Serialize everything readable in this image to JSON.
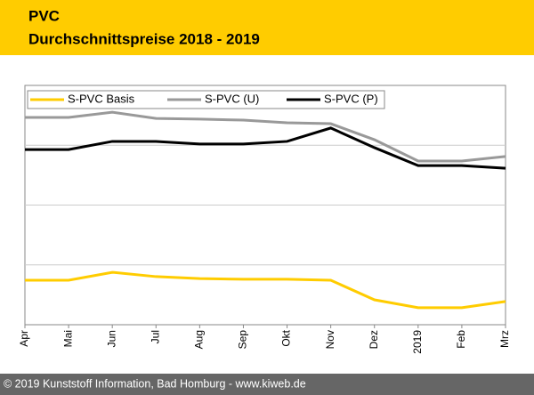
{
  "chart_data": {
    "type": "line",
    "title": "PVC",
    "subtitle": "Durchschnittspreise 2018 - 2019",
    "categories": [
      "Apr",
      "Mai",
      "Jun",
      "Jul",
      "Aug",
      "Sep",
      "Okt",
      "Nov",
      "Dez",
      "2019",
      "Feb",
      "Mrz"
    ],
    "series": [
      {
        "name": "S-PVC Basis",
        "color": "#ffcc00",
        "values": [
          18.6,
          18.6,
          21.9,
          20.1,
          19.3,
          19.0,
          19.0,
          18.6,
          10.4,
          7.1,
          7.1,
          9.7
        ]
      },
      {
        "name": "S-PVC (U)",
        "color": "#999999",
        "values": [
          86.6,
          86.6,
          88.8,
          86.2,
          85.9,
          85.5,
          84.4,
          84.0,
          77.3,
          68.4,
          68.4,
          70.3
        ]
      },
      {
        "name": "S-PVC (P)",
        "color": "#000000",
        "values": [
          73.2,
          73.2,
          76.6,
          76.6,
          75.5,
          75.5,
          76.6,
          82.2,
          74.0,
          66.5,
          66.5,
          65.4
        ]
      }
    ],
    "ylim": [
      0,
      100
    ],
    "yticks": [
      25,
      50,
      75
    ],
    "ytick_labels": false,
    "grid": true,
    "legend": "top"
  },
  "footer": "© 2019 Kunststoff Information, Bad Homburg - www.kiweb.de"
}
